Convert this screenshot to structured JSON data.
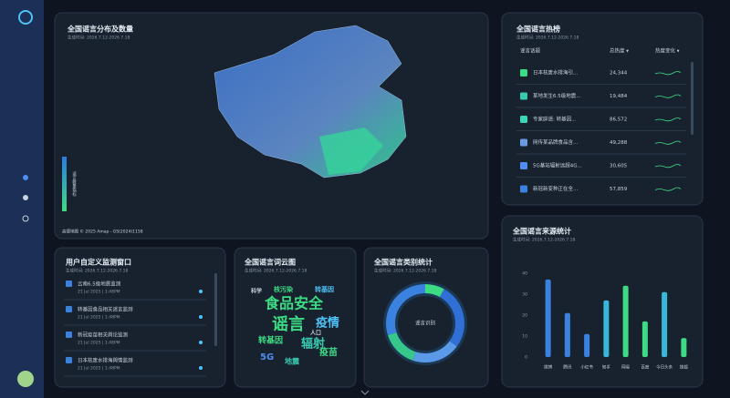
{
  "map_panel": {
    "title": "全国谣言分布及数量",
    "subtitle": "生成时间: 2026.7.12-2026.7.18",
    "legend_label": "谣言数量指标",
    "attribution": "高德地图 © 2025 Amap - GS(2024)1158"
  },
  "hot_list": {
    "title": "全国谣言热榜",
    "subtitle": "生成时间: 2026.7.12-2026.7.18",
    "columns": [
      "谣言话题",
      "总热度 ▾",
      "热度变化 ▾"
    ],
    "rows": [
      [
        "日本核废水排海引...",
        "24,344"
      ],
      [
        "某地发生6.5级地震...",
        "19,484"
      ],
      [
        "专家辟谣: 转基因...",
        "86,572"
      ],
      [
        "网传某品牌食品含...",
        "49,288"
      ],
      [
        "5G基站辐射远超4G...",
        "30,605"
      ],
      [
        "新冠新变种正在全...",
        "57,859"
      ]
    ]
  },
  "monitor": {
    "title": "用户自定义监测窗口",
    "subtitle": "生成时间: 2026.7.12-2026.7.18",
    "items": [
      {
        "name": "云南6.5级地震监测",
        "time": "21 Jul 2025 | 1:48PM"
      },
      {
        "name": "转基因食品相关谣言监测",
        "time": "21 Jul 2025 | 1:48PM"
      },
      {
        "name": "新冠疫苗相关舆论监测",
        "time": "21 Jul 2025 | 1:48PM"
      },
      {
        "name": "日本核废水排海舆情监测",
        "time": "21 Jul 2025 | 1:48PM"
      }
    ]
  },
  "wordcloud": {
    "title": "全国谣言词云图",
    "subtitle": "生成时间: 2026.7.12-2026.7.18",
    "words": [
      "食品安全",
      "谣言",
      "疫情",
      "转基因",
      "辐射",
      "5G",
      "疫苗",
      "地震",
      "核污染",
      "转基因",
      "人口",
      "科学"
    ]
  },
  "chart_data": [
    {
      "type": "donut",
      "title": "全国谣言类别统计",
      "subtitle": "生成时间: 2026.7.12-2026.7.18",
      "center_label": "谣言识别",
      "values": [
        8,
        27,
        20,
        15,
        30
      ],
      "colors": [
        "#3ddc84",
        "#2f6fd6",
        "#5a9ae8",
        "#36c88a",
        "#3b82e0"
      ]
    },
    {
      "type": "bar",
      "title": "全国谣言来源统计",
      "subtitle": "生成时间: 2026.7.12-2026.7.18",
      "categories": [
        "微博",
        "腾讯",
        "小红书",
        "知乎",
        "网易",
        "百度",
        "今日头条",
        "搜狐"
      ],
      "values": [
        37,
        21,
        11,
        27,
        34,
        17,
        31,
        9
      ],
      "colors": [
        "#3b82e0",
        "#3b82e0",
        "#3b82e0",
        "#38b7d8",
        "#3ddc84",
        "#3ddc84",
        "#38b7d8",
        "#3ddc84"
      ],
      "ylim": [
        0,
        40
      ],
      "yticks": [
        0,
        10,
        20,
        30,
        40
      ]
    }
  ]
}
